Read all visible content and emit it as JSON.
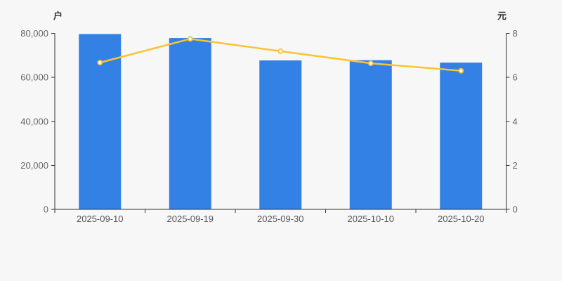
{
  "chart_data": {
    "type": "bar",
    "title": "",
    "categories": [
      "2025-09-10",
      "2025-09-19",
      "2025-09-30",
      "2025-10-10",
      "2025-10-20"
    ],
    "series": [
      {
        "name": "bar-series",
        "type": "bar",
        "axis": "left",
        "unit": "户",
        "color": "#3381e4",
        "values": [
          79700,
          77900,
          67700,
          67800,
          66700
        ]
      },
      {
        "name": "line-series",
        "type": "line",
        "axis": "right",
        "unit": "元",
        "color": "#fac332",
        "marker_fill": "#ffffff",
        "values": [
          6.67,
          7.75,
          7.19,
          6.64,
          6.3
        ]
      }
    ],
    "left_axis": {
      "title": "户",
      "min": 0,
      "max": 80000,
      "ticks": [
        0,
        20000,
        40000,
        60000,
        80000
      ],
      "tick_labels": [
        "0",
        "20,000",
        "40,000",
        "60,000",
        "80,000"
      ]
    },
    "right_axis": {
      "title": "元",
      "min": 0,
      "max": 8,
      "ticks": [
        0,
        2,
        4,
        6,
        8
      ],
      "tick_labels": [
        "0",
        "2",
        "4",
        "6",
        "8"
      ]
    },
    "grid": false,
    "legend": false,
    "colors": {
      "background": "#f7f7f8",
      "axis_line": "#333333",
      "tick_label": "#666666",
      "axis_title": "#333333"
    }
  }
}
